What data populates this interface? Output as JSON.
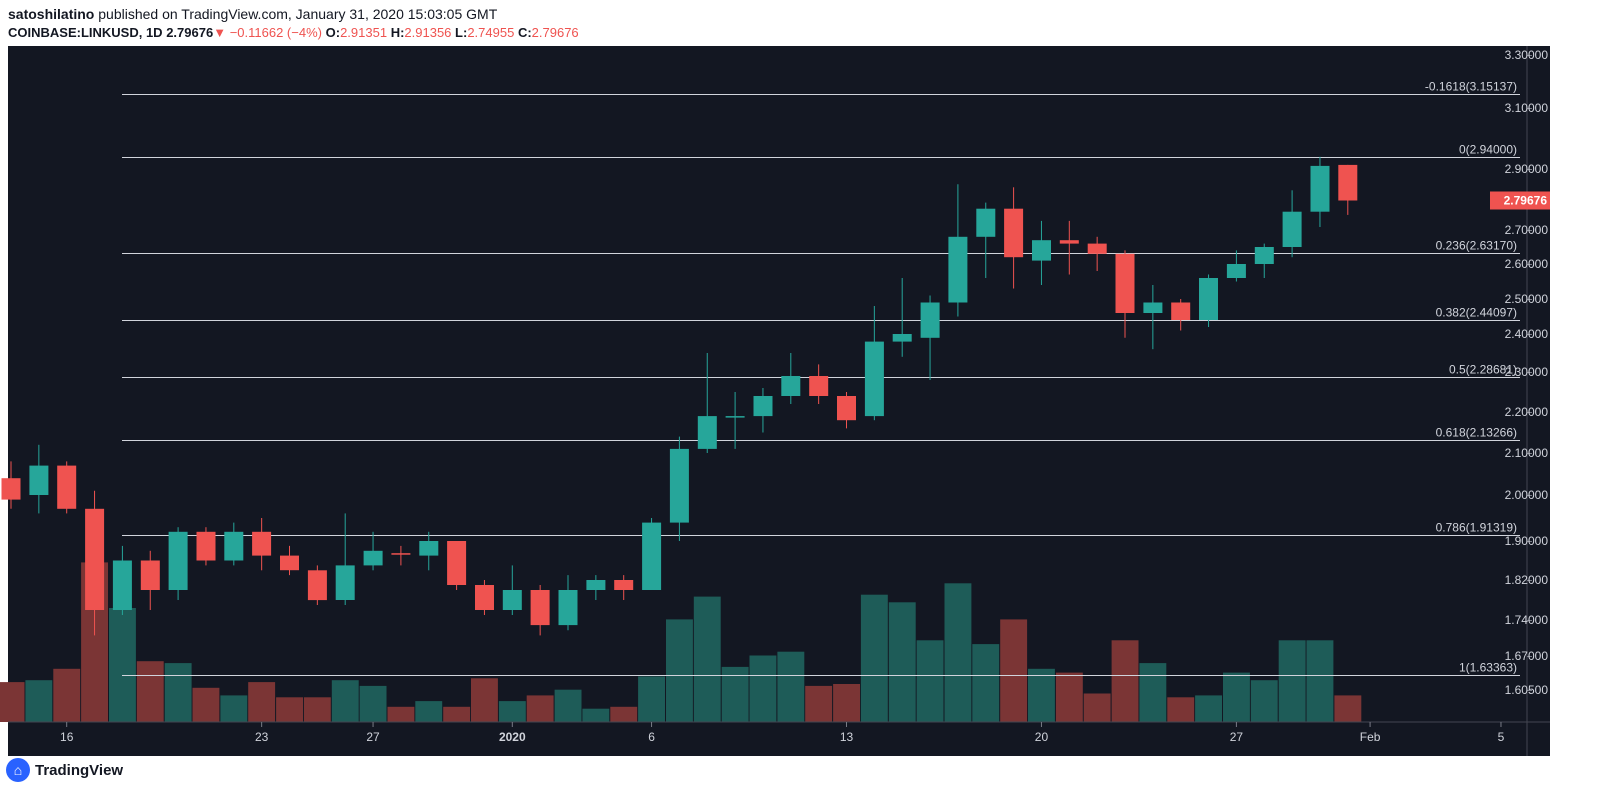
{
  "header": {
    "author": "satoshilatino",
    "published_text": "published on TradingView.com, January 31, 2020 15:03:05 GMT",
    "symbol": "COINBASE:LINKUSD, 1D",
    "last": "2.79676",
    "change": "−0.11662 (−4%)",
    "o_label": "O:",
    "o_value": "2.91351",
    "h_label": "H:",
    "h_value": "2.91356",
    "l_label": "L:",
    "l_value": "2.74955",
    "c_label": "C:",
    "c_value": "2.79676"
  },
  "footer": {
    "brand": "TradingView"
  },
  "colors": {
    "background": "#131722",
    "up": "#26a69a",
    "down": "#ef5350",
    "volume_up": "#1e5c58",
    "volume_down": "#7b3535",
    "fib_line": "#d1d4dc",
    "text": "#d1d4dc"
  },
  "chart_data": {
    "type": "candlestick",
    "x_tick_labels": [
      "16",
      "23",
      "27",
      "2020",
      "6",
      "13",
      "20",
      "27",
      "Feb",
      "5"
    ],
    "y_tick_labels": [
      "3.30000",
      "3.10000",
      "2.90000",
      "2.70000",
      "2.60000",
      "2.50000",
      "2.40000",
      "2.30000",
      "2.20000",
      "2.10000",
      "2.00000",
      "1.90000",
      "1.82000",
      "1.74000",
      "1.67000",
      "1.60500"
    ],
    "current_price_label": "2.79676",
    "fib_levels": [
      {
        "label": "-0.1618(3.15137)",
        "value": 3.15137
      },
      {
        "label": "0(2.94000)",
        "value": 2.94
      },
      {
        "label": "0.236(2.63170)",
        "value": 2.6317
      },
      {
        "label": "0.382(2.44097)",
        "value": 2.44097
      },
      {
        "label": "0.5(2.28681)",
        "value": 2.28681
      },
      {
        "label": "0.618(2.13266)",
        "value": 2.13266
      },
      {
        "label": "0.786(1.91319)",
        "value": 1.91319
      },
      {
        "label": "1(1.63363)",
        "value": 1.63363
      }
    ],
    "candles": [
      {
        "date": "2019-12-14",
        "o": 2.04,
        "h": 2.08,
        "l": 1.97,
        "c": 1.99
      },
      {
        "date": "2019-12-15",
        "o": 2.0,
        "h": 2.12,
        "l": 1.96,
        "c": 2.07
      },
      {
        "date": "2019-12-16",
        "o": 2.07,
        "h": 2.08,
        "l": 1.96,
        "c": 1.97
      },
      {
        "date": "2019-12-17",
        "o": 1.97,
        "h": 2.01,
        "l": 1.71,
        "c": 1.76
      },
      {
        "date": "2019-12-18",
        "o": 1.76,
        "h": 1.89,
        "l": 1.75,
        "c": 1.86
      },
      {
        "date": "2019-12-19",
        "o": 1.86,
        "h": 1.88,
        "l": 1.76,
        "c": 1.8
      },
      {
        "date": "2019-12-20",
        "o": 1.8,
        "h": 1.93,
        "l": 1.78,
        "c": 1.92
      },
      {
        "date": "2019-12-21",
        "o": 1.92,
        "h": 1.93,
        "l": 1.85,
        "c": 1.86
      },
      {
        "date": "2019-12-22",
        "o": 1.86,
        "h": 1.94,
        "l": 1.85,
        "c": 1.92
      },
      {
        "date": "2019-12-23",
        "o": 1.92,
        "h": 1.95,
        "l": 1.84,
        "c": 1.87
      },
      {
        "date": "2019-12-24",
        "o": 1.87,
        "h": 1.89,
        "l": 1.83,
        "c": 1.84
      },
      {
        "date": "2019-12-25",
        "o": 1.84,
        "h": 1.85,
        "l": 1.77,
        "c": 1.78
      },
      {
        "date": "2019-12-26",
        "o": 1.78,
        "h": 1.96,
        "l": 1.77,
        "c": 1.85
      },
      {
        "date": "2019-12-27",
        "o": 1.85,
        "h": 1.92,
        "l": 1.84,
        "c": 1.88
      },
      {
        "date": "2019-12-28",
        "o": 1.875,
        "h": 1.89,
        "l": 1.85,
        "c": 1.872
      },
      {
        "date": "2019-12-29",
        "o": 1.87,
        "h": 1.92,
        "l": 1.84,
        "c": 1.9
      },
      {
        "date": "2019-12-30",
        "o": 1.9,
        "h": 1.9,
        "l": 1.8,
        "c": 1.81
      },
      {
        "date": "2019-12-31",
        "o": 1.81,
        "h": 1.82,
        "l": 1.75,
        "c": 1.76
      },
      {
        "date": "2020-01-01",
        "o": 1.76,
        "h": 1.85,
        "l": 1.75,
        "c": 1.8
      },
      {
        "date": "2020-01-02",
        "o": 1.8,
        "h": 1.81,
        "l": 1.71,
        "c": 1.73
      },
      {
        "date": "2020-01-03",
        "o": 1.73,
        "h": 1.83,
        "l": 1.72,
        "c": 1.8
      },
      {
        "date": "2020-01-04",
        "o": 1.8,
        "h": 1.83,
        "l": 1.78,
        "c": 1.82
      },
      {
        "date": "2020-01-05",
        "o": 1.82,
        "h": 1.83,
        "l": 1.78,
        "c": 1.8
      },
      {
        "date": "2020-01-06",
        "o": 1.8,
        "h": 1.95,
        "l": 1.8,
        "c": 1.94
      },
      {
        "date": "2020-01-07",
        "o": 1.94,
        "h": 2.14,
        "l": 1.9,
        "c": 2.11
      },
      {
        "date": "2020-01-08",
        "o": 2.11,
        "h": 2.35,
        "l": 2.1,
        "c": 2.19
      },
      {
        "date": "2020-01-09",
        "o": 2.19,
        "h": 2.25,
        "l": 2.11,
        "c": 2.19
      },
      {
        "date": "2020-01-10",
        "o": 2.19,
        "h": 2.26,
        "l": 2.15,
        "c": 2.24
      },
      {
        "date": "2020-01-11",
        "o": 2.24,
        "h": 2.35,
        "l": 2.22,
        "c": 2.29
      },
      {
        "date": "2020-01-12",
        "o": 2.29,
        "h": 2.32,
        "l": 2.22,
        "c": 2.24
      },
      {
        "date": "2020-01-13",
        "o": 2.24,
        "h": 2.25,
        "l": 2.16,
        "c": 2.18
      },
      {
        "date": "2020-01-14",
        "o": 2.19,
        "h": 2.48,
        "l": 2.18,
        "c": 2.38
      },
      {
        "date": "2020-01-15",
        "o": 2.38,
        "h": 2.56,
        "l": 2.34,
        "c": 2.4
      },
      {
        "date": "2020-01-16",
        "o": 2.39,
        "h": 2.51,
        "l": 2.28,
        "c": 2.49
      },
      {
        "date": "2020-01-17",
        "o": 2.49,
        "h": 2.85,
        "l": 2.45,
        "c": 2.68
      },
      {
        "date": "2020-01-18",
        "o": 2.68,
        "h": 2.79,
        "l": 2.56,
        "c": 2.77
      },
      {
        "date": "2020-01-19",
        "o": 2.77,
        "h": 2.84,
        "l": 2.53,
        "c": 2.62
      },
      {
        "date": "2020-01-20",
        "o": 2.61,
        "h": 2.73,
        "l": 2.54,
        "c": 2.67
      },
      {
        "date": "2020-01-21",
        "o": 2.67,
        "h": 2.73,
        "l": 2.57,
        "c": 2.66
      },
      {
        "date": "2020-01-22",
        "o": 2.66,
        "h": 2.68,
        "l": 2.58,
        "c": 2.63
      },
      {
        "date": "2020-01-23",
        "o": 2.63,
        "h": 2.64,
        "l": 2.39,
        "c": 2.46
      },
      {
        "date": "2020-01-24",
        "o": 2.46,
        "h": 2.54,
        "l": 2.36,
        "c": 2.49
      },
      {
        "date": "2020-01-25",
        "o": 2.49,
        "h": 2.5,
        "l": 2.41,
        "c": 2.44
      },
      {
        "date": "2020-01-26",
        "o": 2.44,
        "h": 2.57,
        "l": 2.42,
        "c": 2.56
      },
      {
        "date": "2020-01-27",
        "o": 2.56,
        "h": 2.64,
        "l": 2.55,
        "c": 2.6
      },
      {
        "date": "2020-01-28",
        "o": 2.6,
        "h": 2.66,
        "l": 2.56,
        "c": 2.65
      },
      {
        "date": "2020-01-29",
        "o": 2.65,
        "h": 2.83,
        "l": 2.62,
        "c": 2.76
      },
      {
        "date": "2020-01-30",
        "o": 2.76,
        "h": 2.94,
        "l": 2.71,
        "c": 2.91
      },
      {
        "date": "2020-01-31",
        "o": 2.91351,
        "h": 2.91356,
        "l": 2.74955,
        "c": 2.79676
      }
    ],
    "volume": [
      0.21,
      0.22,
      0.28,
      0.84,
      0.6,
      0.32,
      0.31,
      0.18,
      0.14,
      0.21,
      0.13,
      0.13,
      0.22,
      0.19,
      0.08,
      0.11,
      0.08,
      0.23,
      0.11,
      0.14,
      0.17,
      0.07,
      0.08,
      0.24,
      0.54,
      0.66,
      0.29,
      0.35,
      0.37,
      0.19,
      0.2,
      0.67,
      0.63,
      0.43,
      0.73,
      0.41,
      0.54,
      0.28,
      0.26,
      0.15,
      0.43,
      0.31,
      0.13,
      0.14,
      0.26,
      0.22,
      0.43,
      0.43,
      0.14
    ]
  }
}
